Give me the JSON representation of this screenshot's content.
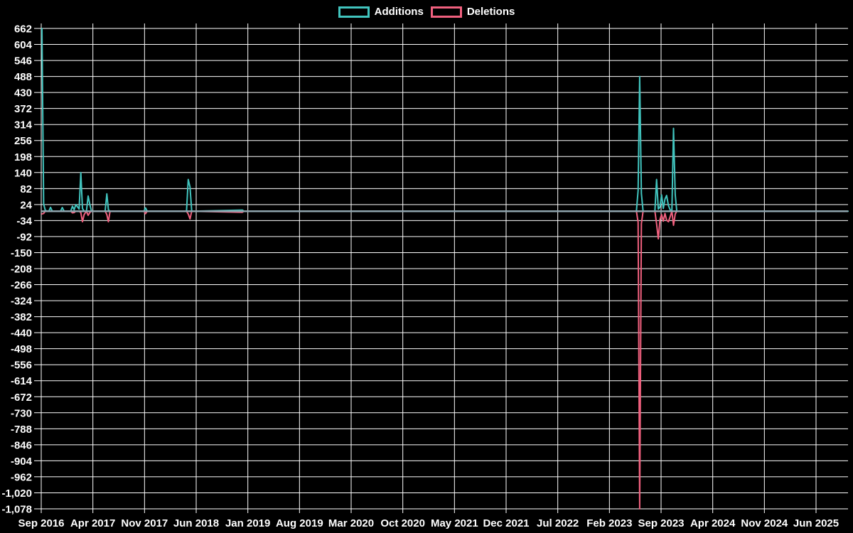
{
  "legend": {
    "additions_label": "Additions",
    "deletions_label": "Deletions"
  },
  "colors": {
    "background": "#000000",
    "gridline": "#ffffff",
    "tick_text": "#ffffff",
    "additions": "#41c4be",
    "deletions": "#f0607e",
    "zero_baseline": "#8fa4ad"
  },
  "chart_data": {
    "type": "line",
    "title": "",
    "legend": [
      "Additions",
      "Deletions"
    ],
    "legend_position": "top-center",
    "grid": true,
    "x_tick_labels": [
      "Sep 2016",
      "Apr 2017",
      "Nov 2017",
      "Jun 2018",
      "Jan 2019",
      "Aug 2019",
      "Mar 2020",
      "Oct 2020",
      "May 2021",
      "Dec 2021",
      "Jul 2022",
      "Feb 2023",
      "Sep 2023",
      "Apr 2024",
      "Nov 2024",
      "Jun 2025"
    ],
    "y_tick_labels": [
      "662",
      "604",
      "546",
      "488",
      "430",
      "372",
      "314",
      "256",
      "198",
      "140",
      "82",
      "24",
      "-34",
      "-92",
      "-150",
      "-208",
      "-266",
      "-324",
      "-382",
      "-440",
      "-498",
      "-556",
      "-614",
      "-672",
      "-730",
      "-788",
      "-846",
      "-904",
      "-962",
      "-1,020",
      "-1,078"
    ],
    "y_axis": {
      "min": -1078,
      "max": 662,
      "step": 58
    },
    "x_axis": {
      "start": "2016-09",
      "end": "2025-10",
      "unit": "weeks"
    },
    "series": [
      {
        "name": "Additions",
        "color": "#41c4be"
      },
      {
        "name": "Deletions",
        "color": "#f0607e"
      }
    ],
    "points_format": [
      "date",
      "additions",
      "deletions"
    ],
    "points": [
      [
        "2016-09-04",
        662,
        -10
      ],
      [
        "2016-09-11",
        26,
        -8
      ],
      [
        "2016-09-18",
        2,
        0
      ],
      [
        "2016-10-02",
        0,
        0
      ],
      [
        "2016-10-09",
        14,
        0
      ],
      [
        "2016-10-16",
        0,
        0
      ],
      [
        "2016-11-20",
        0,
        0
      ],
      [
        "2016-11-27",
        13,
        0
      ],
      [
        "2016-12-04",
        0,
        0
      ],
      [
        "2017-01-01",
        0,
        0
      ],
      [
        "2017-01-08",
        18,
        -6
      ],
      [
        "2017-01-15",
        5,
        -5
      ],
      [
        "2017-01-22",
        24,
        0
      ],
      [
        "2017-02-05",
        8,
        0
      ],
      [
        "2017-02-12",
        140,
        -5
      ],
      [
        "2017-02-19",
        10,
        -38
      ],
      [
        "2017-02-26",
        0,
        -12
      ],
      [
        "2017-03-05",
        0,
        0
      ],
      [
        "2017-03-12",
        55,
        -15
      ],
      [
        "2017-03-19",
        24,
        -5
      ],
      [
        "2017-03-26",
        0,
        0
      ],
      [
        "2017-05-21",
        0,
        0
      ],
      [
        "2017-05-28",
        63,
        -12
      ],
      [
        "2017-06-04",
        5,
        -38
      ],
      [
        "2017-06-11",
        0,
        0
      ],
      [
        "2017-10-29",
        0,
        0
      ],
      [
        "2017-11-05",
        12,
        -9
      ],
      [
        "2017-11-12",
        0,
        0
      ],
      [
        "2018-04-22",
        0,
        0
      ],
      [
        "2018-04-29",
        115,
        -10
      ],
      [
        "2018-05-06",
        88,
        -28
      ],
      [
        "2018-05-13",
        0,
        0
      ],
      [
        "2018-12-09",
        4,
        -4
      ],
      [
        "2018-12-16",
        0,
        0
      ],
      [
        "2023-05-21",
        0,
        0
      ],
      [
        "2023-05-28",
        75,
        -40
      ],
      [
        "2023-06-04",
        488,
        -1078
      ],
      [
        "2023-06-11",
        64,
        -45
      ],
      [
        "2023-06-18",
        0,
        0
      ],
      [
        "2023-08-06",
        0,
        0
      ],
      [
        "2023-08-13",
        115,
        -46
      ],
      [
        "2023-08-20",
        8,
        -100
      ],
      [
        "2023-08-27",
        15,
        -30
      ],
      [
        "2023-09-03",
        59,
        -12
      ],
      [
        "2023-09-10",
        10,
        -36
      ],
      [
        "2023-09-17",
        44,
        -8
      ],
      [
        "2023-09-24",
        57,
        -33
      ],
      [
        "2023-10-01",
        20,
        -38
      ],
      [
        "2023-10-08",
        5,
        -20
      ],
      [
        "2023-10-15",
        0,
        0
      ],
      [
        "2023-10-22",
        300,
        -51
      ],
      [
        "2023-10-29",
        60,
        -10
      ],
      [
        "2023-11-05",
        0,
        0
      ],
      [
        "2025-10-12",
        0,
        0
      ]
    ]
  }
}
